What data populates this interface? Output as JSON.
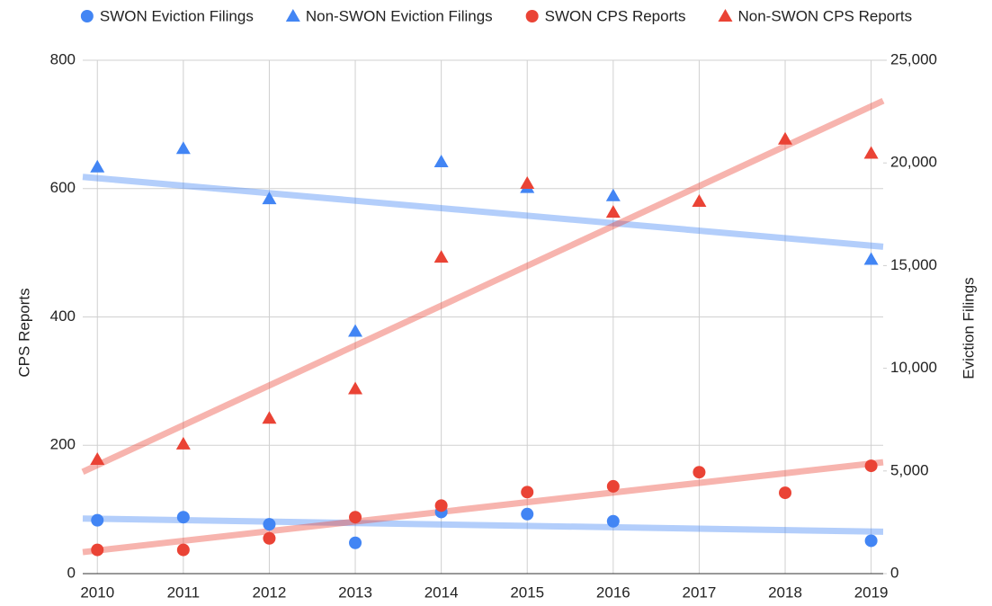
{
  "chart_data": {
    "type": "scatter",
    "x": [
      2010,
      2011,
      2012,
      2013,
      2014,
      2015,
      2016,
      2017,
      2018,
      2019
    ],
    "xlim": [
      2009.83,
      2019.14
    ],
    "xticks": [
      2010,
      2011,
      2012,
      2013,
      2014,
      2015,
      2016,
      2017,
      2018,
      2019
    ],
    "ylim": [
      0,
      800
    ],
    "yticks": [
      0,
      200,
      400,
      600,
      800
    ],
    "y2lim": [
      0,
      25000
    ],
    "y2ticks": [
      0,
      {
        "value": 5000,
        "label": "5,000"
      },
      {
        "value": 10000,
        "label": "10,000"
      },
      {
        "value": 15000,
        "label": "15,000"
      },
      {
        "value": 20000,
        "label": "20,000"
      },
      {
        "value": 25000,
        "label": "25,000"
      }
    ],
    "y_label": "CPS Reports",
    "y2_label": "Eviction Filings",
    "grid": true,
    "trendline": true,
    "legend": "top",
    "series": [
      {
        "name": "SWON Eviction Filings",
        "color": "#4285f4",
        "marker": "circle",
        "axis": "y2",
        "values": [
          2600,
          2750,
          2400,
          1500,
          3000,
          2900,
          2550,
          null,
          null,
          1600
        ]
      },
      {
        "name": "Non-SWON Eviction Filings",
        "color": "#4285f4",
        "marker": "triangle",
        "axis": "y2",
        "values": [
          19800,
          20700,
          18250,
          11800,
          20050,
          18800,
          18400,
          null,
          null,
          15300
        ]
      },
      {
        "name": "SWON CPS Reports",
        "color": "#ea4335",
        "marker": "circle",
        "values": [
          37,
          37,
          55,
          88,
          106,
          127,
          136,
          158,
          126,
          168
        ]
      },
      {
        "name": "Non-SWON CPS Reports",
        "color": "#ea4335",
        "marker": "triangle",
        "values": [
          178,
          202,
          242,
          288,
          493,
          608,
          563,
          580,
          677,
          655
        ]
      }
    ]
  }
}
